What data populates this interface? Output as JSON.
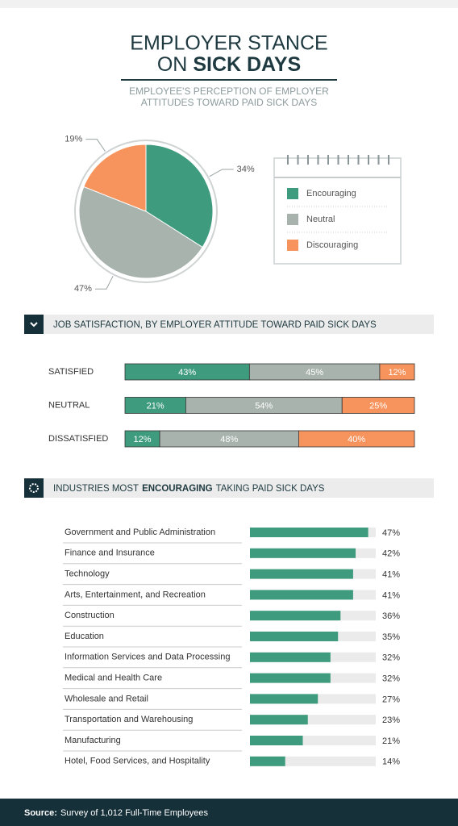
{
  "header": {
    "title_line1": "EMPLOYER STANCE",
    "title_on": "ON",
    "title_bold": "SICK DAYS",
    "subtitle": [
      "EMPLOYEE'S PERCEPTION OF EMPLOYER",
      "ATTITUDES TOWARD PAID SICK DAYS"
    ]
  },
  "chart_data": [
    {
      "type": "pie",
      "categories": [
        "Encouraging",
        "Neutral",
        "Discouraging"
      ],
      "values": [
        34,
        47,
        19
      ],
      "value_labels": [
        "34%",
        "47%",
        "19%"
      ],
      "colors": [
        "#3f9b7d",
        "#a8b3ae",
        "#f7935c"
      ]
    },
    {
      "type": "stacked-hbar",
      "title": "JOB SATISFACTION, BY EMPLOYER ATTITUDE TOWARD PAID SICK DAYS",
      "categories": [
        "SATISFIED",
        "NEUTRAL",
        "DISSATISFIED"
      ],
      "xlim": [
        0,
        100
      ],
      "series": [
        {
          "name": "Encouraging",
          "color": "#3f9b7d",
          "values": [
            43,
            21,
            12
          ],
          "value_labels": [
            "43%",
            "21%",
            "12%"
          ]
        },
        {
          "name": "Neutral",
          "color": "#a8b3ae",
          "values": [
            45,
            54,
            48
          ],
          "value_labels": [
            "45%",
            "54%",
            "48%"
          ]
        },
        {
          "name": "Discouraging",
          "color": "#f7935c",
          "values": [
            12,
            25,
            40
          ],
          "value_labels": [
            "12%",
            "25%",
            "40%"
          ]
        }
      ]
    },
    {
      "type": "hbar",
      "title": [
        "INDUSTRIES MOST",
        "ENCOURAGING",
        "TAKING PAID SICK DAYS"
      ],
      "categories": [
        "Government and Public Administration",
        "Finance and Insurance",
        "Technology",
        "Arts, Entertainment, and Recreation",
        "Construction",
        "Education",
        "Information Services and Data Processing",
        "Medical and Health Care",
        "Wholesale and Retail",
        "Transportation and Warehousing",
        "Manufacturing",
        "Hotel, Food Services, and Hospitality"
      ],
      "values": [
        47,
        42,
        41,
        41,
        36,
        35,
        32,
        32,
        27,
        23,
        21,
        14
      ],
      "value_labels": [
        "47%",
        "42%",
        "41%",
        "41%",
        "36%",
        "35%",
        "32%",
        "32%",
        "27%",
        "23%",
        "21%",
        "14%"
      ],
      "xlim": [
        0,
        50
      ],
      "color": "#3f9b7d"
    }
  ],
  "footer": {
    "label": "Source:",
    "text": "Survey of 1,012 Full-Time Employees"
  }
}
